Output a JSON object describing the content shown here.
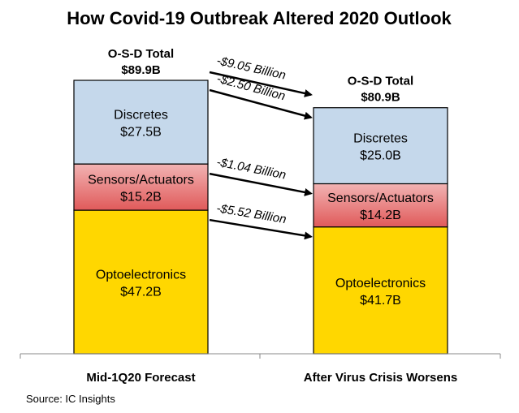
{
  "chart_data": {
    "type": "bar",
    "stacked": true,
    "title": "How Covid-19 Outbreak Altered 2020 Outlook",
    "categories": [
      "Mid-1Q20 Forecast",
      "After Virus Crisis Worsens"
    ],
    "series": [
      {
        "name": "Optoelectronics",
        "values": [
          47.2,
          41.7
        ],
        "labels": [
          "$47.2B",
          "$41.7B"
        ],
        "color": "#ffd700"
      },
      {
        "name": "Sensors/Actuators",
        "values": [
          15.2,
          14.2
        ],
        "labels": [
          "$15.2B",
          "$14.2B"
        ],
        "color": "#e87a7a"
      },
      {
        "name": "Discretes",
        "values": [
          27.5,
          25.0
        ],
        "labels": [
          "$27.5B",
          "$25.0B"
        ],
        "color": "#c5d8eb"
      }
    ],
    "totals": {
      "heading": "O-S-D Total",
      "values": [
        89.9,
        80.9
      ],
      "labels": [
        "$89.9B",
        "$80.9B"
      ]
    },
    "changes": [
      {
        "target": "total",
        "value": -9.05,
        "label": "-$9.05 Billion"
      },
      {
        "target": "Discretes",
        "value": -2.5,
        "label": "-$2.50 Billion"
      },
      {
        "target": "Sensors/Actuators",
        "value": -1.04,
        "label": "-$1.04 Billion"
      },
      {
        "target": "Optoelectronics",
        "value": -5.52,
        "label": "-$5.52 Billion"
      }
    ],
    "source": "Source: IC Insights",
    "ylim": [
      0,
      89.9
    ],
    "grid": false
  }
}
